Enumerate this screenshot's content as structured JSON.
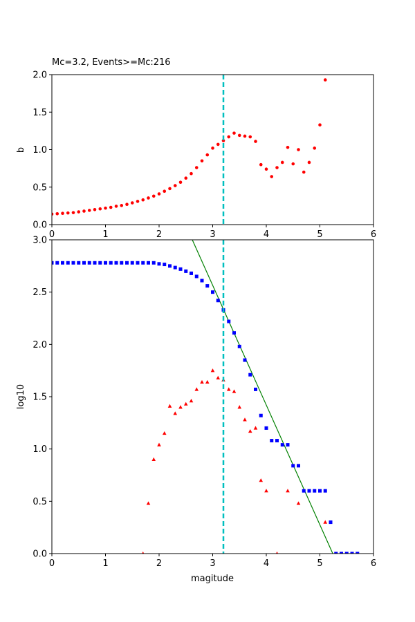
{
  "chart_data": [
    {
      "type": "scatter",
      "title": "Mc=3.2, Events>=Mc:216",
      "xlabel": "",
      "ylabel": "b",
      "xlim": [
        0,
        6
      ],
      "ylim": [
        0,
        2
      ],
      "xticks": [
        "0",
        "1",
        "2",
        "3",
        "4",
        "5",
        "6"
      ],
      "yticks": [
        "0.0",
        "0.5",
        "1.0",
        "1.5",
        "2.0"
      ],
      "grid": false,
      "mc_line": {
        "x": 3.2,
        "color": "#00bfbf"
      },
      "series": [
        {
          "color": "#ff0000",
          "marker": "circle",
          "x": [
            0.0,
            0.1,
            0.2,
            0.3,
            0.4,
            0.5,
            0.6,
            0.7,
            0.8,
            0.9,
            1.0,
            1.1,
            1.2,
            1.3,
            1.4,
            1.5,
            1.6,
            1.7,
            1.8,
            1.9,
            2.0,
            2.1,
            2.2,
            2.3,
            2.4,
            2.5,
            2.6,
            2.7,
            2.8,
            2.9,
            3.0,
            3.1,
            3.2,
            3.3,
            3.4,
            3.5,
            3.6,
            3.7,
            3.8,
            3.9,
            4.0,
            4.1,
            4.2,
            4.3,
            4.4,
            4.5,
            4.6,
            4.7,
            4.8,
            4.9,
            5.0,
            5.1
          ],
          "y": [
            0.14,
            0.145,
            0.15,
            0.155,
            0.16,
            0.17,
            0.18,
            0.19,
            0.2,
            0.21,
            0.22,
            0.23,
            0.245,
            0.255,
            0.27,
            0.29,
            0.31,
            0.33,
            0.355,
            0.38,
            0.41,
            0.445,
            0.48,
            0.52,
            0.565,
            0.62,
            0.68,
            0.76,
            0.85,
            0.93,
            1.02,
            1.07,
            1.12,
            1.17,
            1.22,
            1.19,
            1.18,
            1.17,
            1.11,
            0.8,
            0.74,
            0.64,
            0.76,
            0.83,
            1.03,
            0.81,
            1.0,
            0.7,
            0.83,
            1.02,
            1.33,
            1.93
          ]
        }
      ]
    },
    {
      "type": "scatter",
      "title": "",
      "xlabel": "magitude",
      "ylabel": "log10",
      "xlim": [
        0,
        6
      ],
      "ylim": [
        0,
        3
      ],
      "xticks": [
        "0",
        "1",
        "2",
        "3",
        "4",
        "5",
        "6"
      ],
      "yticks": [
        "0.0",
        "0.5",
        "1.0",
        "1.5",
        "2.0",
        "2.5",
        "3.0"
      ],
      "grid": false,
      "mc_line": {
        "x": 3.2,
        "color": "#00bfbf"
      },
      "fit_line": {
        "x": [
          2.62,
          5.24
        ],
        "y": [
          3.0,
          0.0
        ],
        "color": "#008000"
      },
      "series": [
        {
          "color": "#0000ff",
          "marker": "square",
          "x": [
            0.0,
            0.1,
            0.2,
            0.3,
            0.4,
            0.5,
            0.6,
            0.7,
            0.8,
            0.9,
            1.0,
            1.1,
            1.2,
            1.3,
            1.4,
            1.5,
            1.6,
            1.7,
            1.8,
            1.9,
            2.0,
            2.1,
            2.2,
            2.3,
            2.4,
            2.5,
            2.6,
            2.7,
            2.8,
            2.9,
            3.0,
            3.1,
            3.2,
            3.3,
            3.4,
            3.5,
            3.6,
            3.7,
            3.8,
            3.9,
            4.0,
            4.1,
            4.2,
            4.3,
            4.4,
            4.5,
            4.6,
            4.7,
            4.8,
            4.9,
            5.0,
            5.1,
            5.2,
            5.3,
            5.4,
            5.5,
            5.6,
            5.7
          ],
          "y": [
            2.78,
            2.78,
            2.78,
            2.78,
            2.78,
            2.78,
            2.78,
            2.78,
            2.78,
            2.78,
            2.78,
            2.78,
            2.78,
            2.78,
            2.78,
            2.78,
            2.78,
            2.78,
            2.78,
            2.78,
            2.77,
            2.765,
            2.75,
            2.735,
            2.72,
            2.7,
            2.68,
            2.65,
            2.61,
            2.56,
            2.5,
            2.42,
            2.33,
            2.22,
            2.11,
            1.98,
            1.85,
            1.71,
            1.57,
            1.32,
            1.2,
            1.08,
            1.08,
            1.04,
            1.04,
            0.84,
            0.84,
            0.6,
            0.6,
            0.6,
            0.6,
            0.6,
            0.3,
            0.0,
            0.0,
            0.0,
            0.0,
            0.0
          ]
        },
        {
          "color": "#ff0000",
          "marker": "triangle",
          "x": [
            1.7,
            1.8,
            1.9,
            2.0,
            2.1,
            2.2,
            2.3,
            2.4,
            2.5,
            2.6,
            2.7,
            2.8,
            2.9,
            3.0,
            3.1,
            3.2,
            3.3,
            3.4,
            3.5,
            3.6,
            3.7,
            3.8,
            3.9,
            4.0,
            4.2,
            4.4,
            4.6,
            5.1
          ],
          "y": [
            0.0,
            0.48,
            0.9,
            1.04,
            1.15,
            1.41,
            1.34,
            1.4,
            1.43,
            1.46,
            1.57,
            1.64,
            1.64,
            1.75,
            1.68,
            1.66,
            1.57,
            1.55,
            1.4,
            1.28,
            1.17,
            1.2,
            0.7,
            0.6,
            0.0,
            0.6,
            0.48,
            0.3
          ]
        }
      ]
    }
  ]
}
